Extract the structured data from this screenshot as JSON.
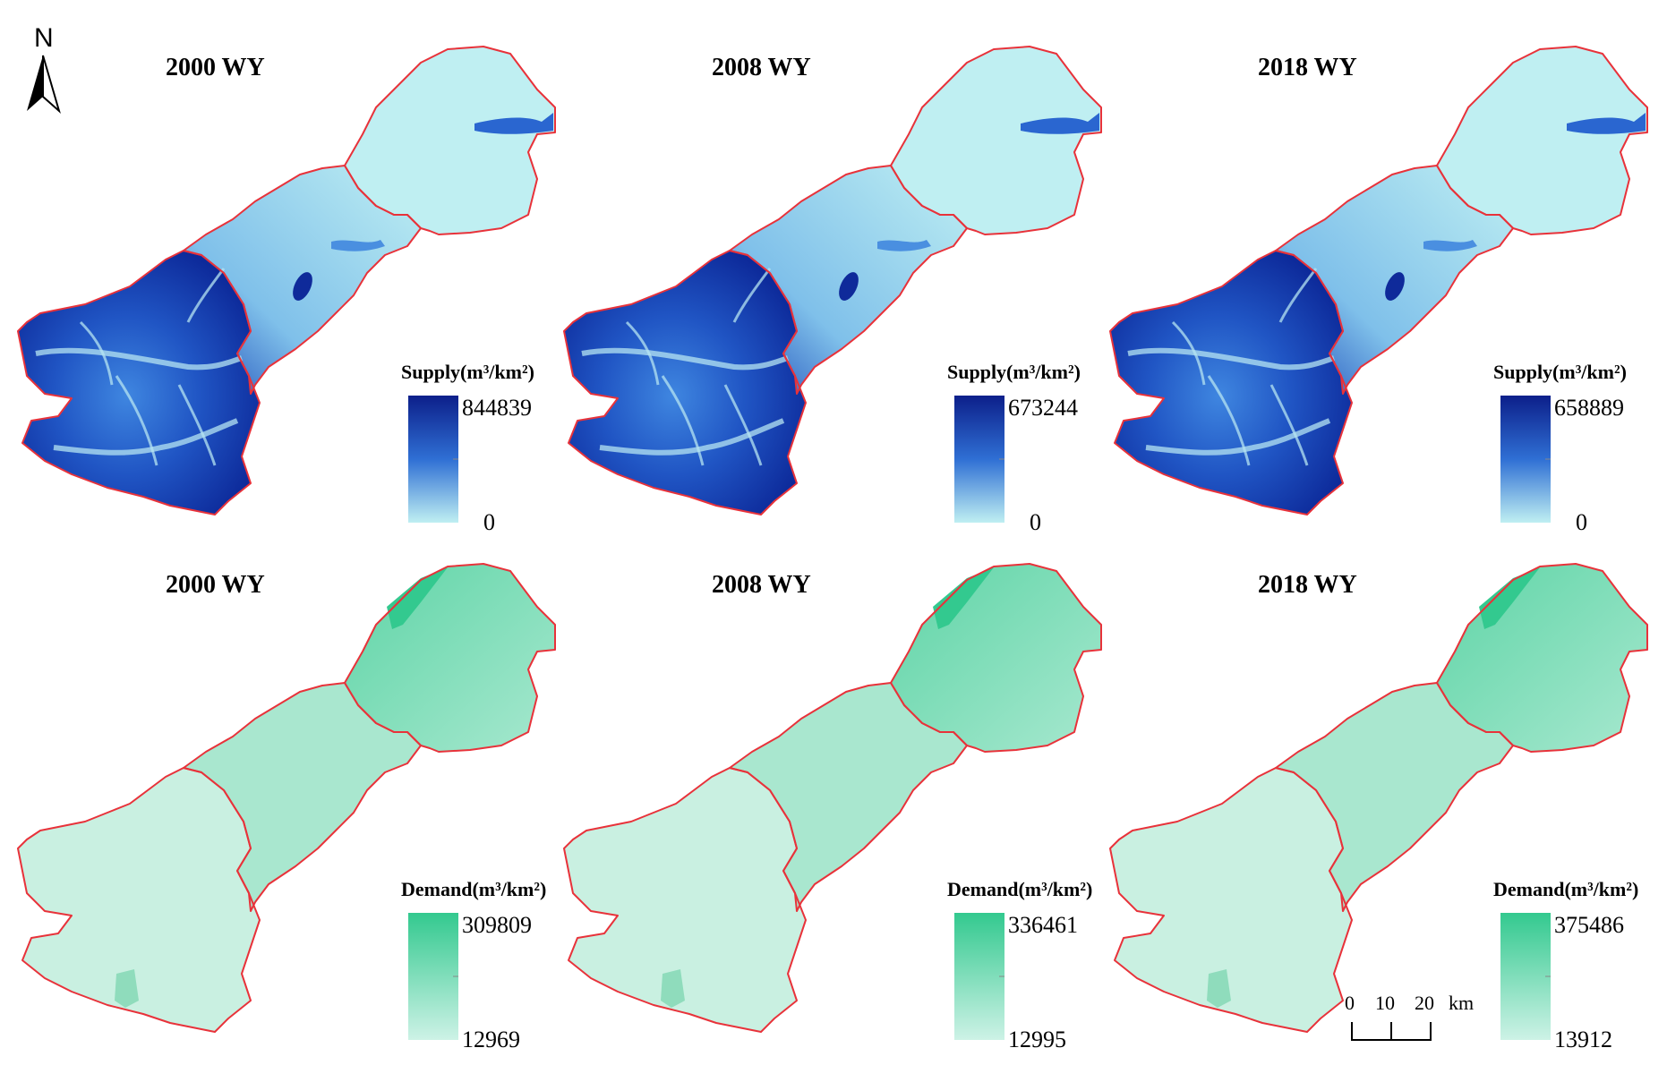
{
  "north_label": "N",
  "scale_bar": {
    "labels": [
      "0",
      "10",
      "20"
    ],
    "unit": "km"
  },
  "panels": [
    {
      "title": "2000    WY",
      "legend_title": "Supply(m³/km²)",
      "max": "844839",
      "min": "0",
      "type": "supply"
    },
    {
      "title": "2008    WY",
      "legend_title": "Supply(m³/km²)",
      "max": "673244",
      "min": "0",
      "type": "supply"
    },
    {
      "title": "2018    WY",
      "legend_title": "Supply(m³/km²)",
      "max": "658889",
      "min": "0",
      "type": "supply"
    },
    {
      "title": "2000    WY",
      "legend_title": "Demand(m³/km²)",
      "max": "309809",
      "min": "12969",
      "type": "demand"
    },
    {
      "title": "2008    WY",
      "legend_title": "Demand(m³/km²)",
      "max": "336461",
      "min": "12995",
      "type": "demand"
    },
    {
      "title": "2018    WY",
      "legend_title": "Demand(m³/km²)",
      "max": "375486",
      "min": "13912",
      "type": "demand"
    }
  ],
  "colors": {
    "supply_high": "#0c1f8a",
    "supply_mid": "#2f6fd4",
    "supply_low": "#bfeff2",
    "demand_high": "#33c98f",
    "demand_low": "#cdf2e6",
    "boundary": "#e8323a"
  }
}
